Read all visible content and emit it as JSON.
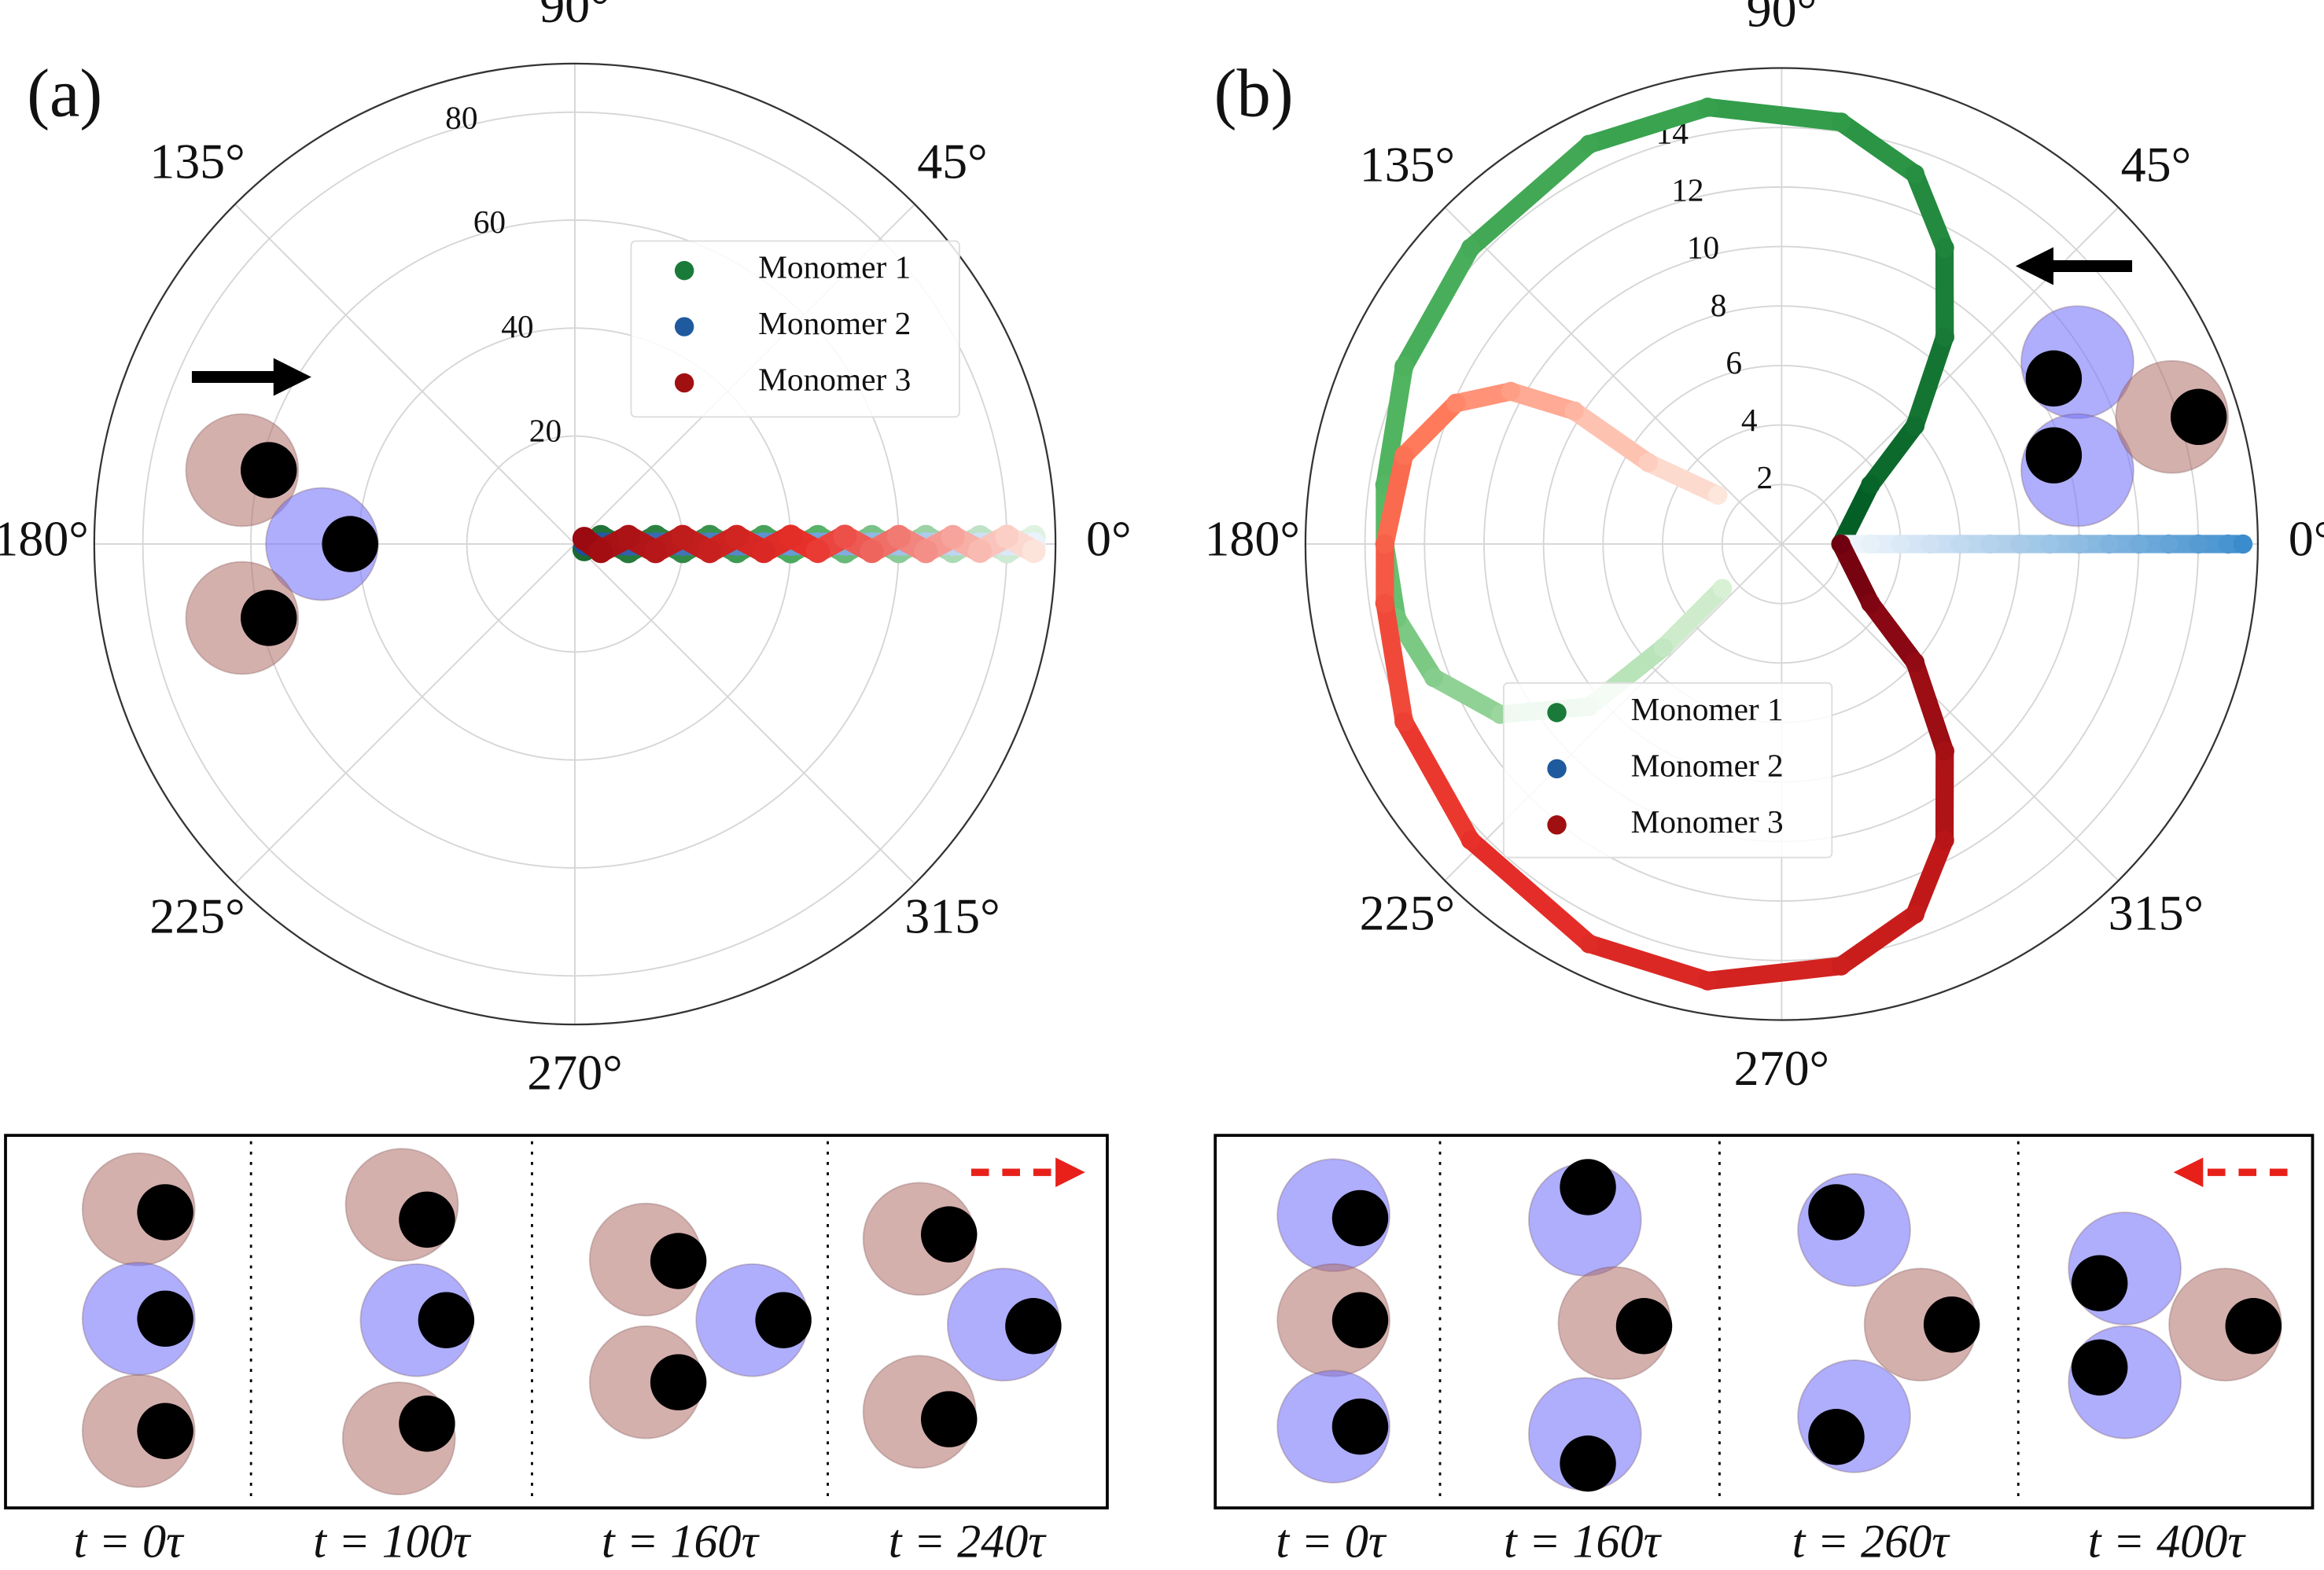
{
  "chart_data": [
    {
      "type": "polar",
      "panel_label": "(a)",
      "rlim": [
        0,
        89
      ],
      "rticks": [
        20,
        40,
        60,
        80
      ],
      "thetaticks": [
        {
          "value": 0,
          "label": "0°"
        },
        {
          "value": 45,
          "label": "45°"
        },
        {
          "value": 90,
          "label": "90°"
        },
        {
          "value": 135,
          "label": "135°"
        },
        {
          "value": 180,
          "label": "180°"
        },
        {
          "value": 225,
          "label": "225°"
        },
        {
          "value": 270,
          "label": "270°"
        },
        {
          "value": 315,
          "label": "315°"
        }
      ],
      "grid": true,
      "legend": "upper right",
      "series": [
        {
          "name": "Monomer 1",
          "color": "#1a7a3a",
          "gradient": [
            "#1a6a30",
            "#4fae62",
            "#dff2e2"
          ],
          "theta": [
            -30,
            15.5,
            -7.8,
            5.2,
            -3.9,
            3.1,
            -2.6,
            2.2,
            -2.0,
            1.7,
            -1.6,
            1.4,
            -1.3,
            1.2,
            -1.1,
            1.0,
            -1.0,
            0.9
          ],
          "r": [
            2,
            5,
            10,
            15,
            20,
            25,
            30,
            35,
            40,
            45,
            50,
            55,
            60,
            65,
            70,
            75,
            80,
            85
          ]
        },
        {
          "name": "Monomer 2",
          "color": "#1f5a9e",
          "gradient": [
            "#1f4e9a",
            "#6aa0d8",
            "#eaf2fb"
          ],
          "theta": [
            0,
            0,
            0,
            0,
            0,
            0,
            0,
            0,
            0,
            0,
            0,
            0,
            0,
            0,
            0,
            0,
            0,
            0
          ],
          "r": [
            2,
            5,
            10,
            15,
            20,
            25,
            30,
            35,
            40,
            45,
            50,
            55,
            60,
            65,
            70,
            75,
            80,
            85
          ]
        },
        {
          "name": "Monomer 3",
          "color": "#a01010",
          "gradient": [
            "#9a0a10",
            "#e8302a",
            "#fde4da"
          ],
          "theta": [
            30,
            -15.5,
            7.8,
            -5.2,
            3.9,
            -3.1,
            2.6,
            -2.2,
            2.0,
            -1.7,
            1.6,
            -1.4,
            1.3,
            -1.2,
            1.1,
            -1.0,
            1.0,
            -0.9
          ],
          "r": [
            2,
            5,
            10,
            15,
            20,
            25,
            30,
            35,
            40,
            45,
            50,
            55,
            60,
            65,
            70,
            75,
            80,
            85
          ]
        }
      ]
    },
    {
      "type": "polar",
      "panel_label": "(b)",
      "rlim": [
        0,
        16
      ],
      "rticks": [
        2,
        4,
        6,
        8,
        10,
        12,
        14
      ],
      "thetaticks": [
        {
          "value": 0,
          "label": "0°"
        },
        {
          "value": 45,
          "label": "45°"
        },
        {
          "value": 90,
          "label": "90°"
        },
        {
          "value": 135,
          "label": "135°"
        },
        {
          "value": 180,
          "label": "180°"
        },
        {
          "value": 225,
          "label": "225°"
        },
        {
          "value": 270,
          "label": "270°"
        },
        {
          "value": 315,
          "label": "315°"
        }
      ],
      "grid": true,
      "legend": "lower center",
      "series": [
        {
          "name": "Monomer 1",
          "color": "#1a7a3a",
          "gradient": [
            "#005a24",
            "#2f9a48",
            "#5cbc68",
            "#d8f0d4"
          ],
          "theta": [
            0,
            33.7,
            41.6,
            51.8,
            61.2,
            70.2,
            82.0,
            99.6,
            115.7,
            136.4,
            154.8,
            171.5,
            180,
            190.9,
            201.0,
            211.2,
            220.2,
            221.2,
            216.9
          ],
          "r": [
            1.99,
            3.59,
            5.99,
            8.86,
            11.36,
            13.22,
            14.32,
            14.89,
            14.91,
            14.43,
            14.02,
            13.48,
            13.33,
            13.17,
            12.52,
            11.05,
            8.47,
            5.29,
            2.49
          ]
        },
        {
          "name": "Monomer 2",
          "color": "#1f5a9e",
          "gradient": [
            "#f4f8fd",
            "#9cc4e6",
            "#3a8ccc"
          ],
          "theta": [
            0,
            0,
            0,
            0,
            0,
            0,
            0,
            0,
            0,
            0,
            0,
            0,
            0,
            0,
            0
          ],
          "r": [
            2,
            3,
            4,
            5,
            6,
            7,
            8,
            9,
            10,
            11,
            12,
            13,
            14,
            15,
            15.5
          ]
        },
        {
          "name": "Monomer 3",
          "color": "#a01010",
          "gradient": [
            "#6e0010",
            "#c01818",
            "#e8302a",
            "#ff7a5a",
            "#fde6dc"
          ],
          "theta": [
            0,
            326.3,
            318.4,
            308.2,
            298.8,
            289.8,
            278.0,
            260.4,
            244.3,
            223.6,
            205.2,
            188.5,
            180,
            166.8,
            156.6,
            150.6,
            147.3,
            148.6,
            142.5
          ],
          "r": [
            1.99,
            3.59,
            5.99,
            8.86,
            11.36,
            13.22,
            14.32,
            14.89,
            14.91,
            14.43,
            14.02,
            13.48,
            13.33,
            13.03,
            11.92,
            10.45,
            8.28,
            5.25,
            2.7
          ]
        }
      ]
    }
  ],
  "snapshots": [
    {
      "times": [
        "t = 0τ",
        "t = 100τ",
        "t = 160τ",
        "t = 240τ"
      ]
    },
    {
      "times": [
        "t = 0τ",
        "t = 160τ",
        "t = 260τ",
        "t = 400τ"
      ]
    }
  ]
}
